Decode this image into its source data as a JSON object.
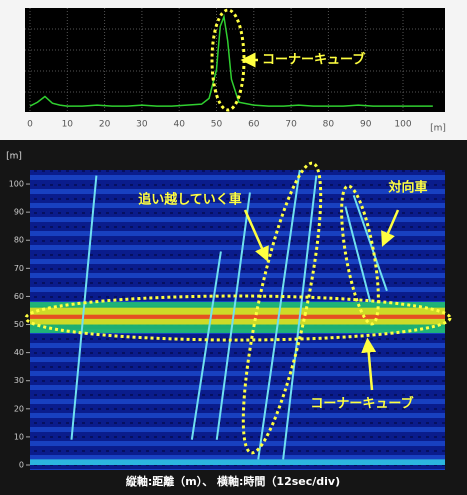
{
  "chart_data": [
    {
      "type": "line",
      "x": [
        0,
        2,
        4,
        6,
        8,
        10,
        14,
        18,
        22,
        26,
        30,
        34,
        38,
        42,
        46,
        48,
        50,
        51,
        52,
        53,
        54,
        56,
        60,
        64,
        68,
        72,
        76,
        80,
        84,
        88,
        92,
        96,
        100,
        104,
        108
      ],
      "values": [
        2,
        6,
        12,
        5,
        3,
        2,
        2,
        3,
        2,
        2,
        3,
        2,
        2,
        3,
        4,
        10,
        40,
        85,
        95,
        70,
        30,
        6,
        3,
        2,
        2,
        3,
        2,
        2,
        2,
        3,
        2,
        2,
        2,
        2,
        2
      ],
      "color": "#30d030",
      "xlim": [
        0,
        110
      ],
      "ylim": [
        0,
        100
      ],
      "xticks": [
        0,
        10,
        20,
        30,
        40,
        50,
        60,
        70,
        80,
        90,
        100
      ],
      "xlabel": "[m]",
      "grid": true,
      "annotations": [
        {
          "text": "コーナーキューブ"
        }
      ]
    },
    {
      "type": "heatmap",
      "xlim": [
        0,
        10
      ],
      "ylim": [
        0,
        105
      ],
      "yticks": [
        0,
        10,
        20,
        30,
        40,
        50,
        60,
        70,
        80,
        90,
        100
      ],
      "ylabel": "[m]",
      "bands": [
        {
          "y": [
            0,
            2
          ],
          "color": "#30c8e8"
        },
        {
          "y": [
            47,
            58
          ],
          "color": "#20c070"
        },
        {
          "y": [
            50,
            56
          ],
          "color": "#e0e020"
        },
        {
          "y": [
            52,
            53.5
          ],
          "color": "#e84020"
        }
      ],
      "tracks": [
        {
          "x": [
            1.0,
            1.6
          ],
          "y": [
            9,
            103
          ]
        },
        {
          "x": [
            3.9,
            4.6
          ],
          "y": [
            9,
            76
          ]
        },
        {
          "x": [
            4.5,
            5.3
          ],
          "y": [
            9,
            97
          ]
        },
        {
          "x": [
            5.5,
            6.5
          ],
          "y": [
            2,
            105
          ]
        },
        {
          "x": [
            6.1,
            6.9
          ],
          "y": [
            2,
            103
          ]
        },
        {
          "x": [
            7.6,
            8.2
          ],
          "y": [
            92,
            58
          ]
        },
        {
          "x": [
            7.8,
            8.6
          ],
          "y": [
            96,
            62
          ]
        }
      ],
      "track_color": "#70e0f0",
      "annotations": [
        {
          "text": "追い越していく車"
        },
        {
          "text": "対向車"
        },
        {
          "text": "コーナーキューブ"
        }
      ]
    }
  ],
  "caption": "縦軸:距離（m）、 横軸:時間（12sec/div)"
}
